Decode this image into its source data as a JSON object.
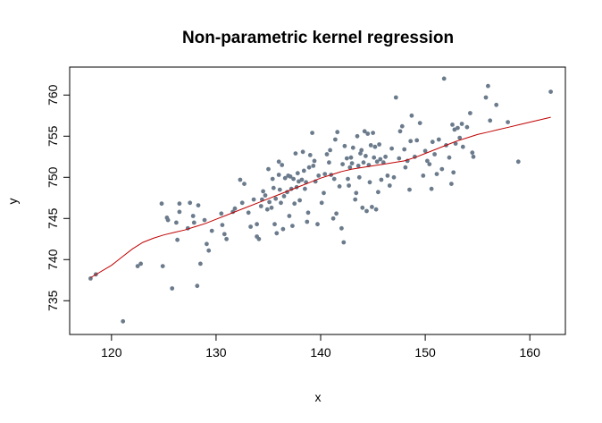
{
  "chart_data": {
    "type": "scatter",
    "title": "Non-parametric kernel regression",
    "xlabel": "x",
    "ylabel": "y",
    "xlim": [
      116,
      163.4
    ],
    "ylim": [
      730.9,
      763.4
    ],
    "xticks": [
      120,
      130,
      140,
      150,
      160
    ],
    "yticks": [
      735,
      740,
      745,
      750,
      755,
      760
    ],
    "grid": false,
    "legend": "none",
    "colors": {
      "points": "#6b7b8c",
      "fit": "#c00000",
      "frame": "#000000"
    },
    "series": [
      {
        "type": "scatter",
        "points": [
          [
            118,
            737.7
          ],
          [
            118.5,
            738.2
          ],
          [
            121.1,
            732.5
          ],
          [
            122.5,
            739.2
          ],
          [
            122.8,
            739.5
          ],
          [
            124.8,
            746.8
          ],
          [
            124.9,
            739.2
          ],
          [
            125.3,
            745.1
          ],
          [
            125.4,
            744.8
          ],
          [
            125.8,
            736.5
          ],
          [
            126.2,
            744.5
          ],
          [
            126.3,
            742.4
          ],
          [
            126.5,
            745.8
          ],
          [
            126.5,
            746.8
          ],
          [
            127.3,
            743.8
          ],
          [
            127.5,
            746.9
          ],
          [
            127.8,
            745.3
          ],
          [
            127.9,
            744.5
          ],
          [
            128.2,
            736.8
          ],
          [
            128.3,
            746.6
          ],
          [
            128.5,
            739.5
          ],
          [
            128.9,
            744.8
          ],
          [
            129.1,
            741.9
          ],
          [
            129.3,
            741.1
          ],
          [
            129.6,
            743.5
          ],
          [
            130.5,
            745.6
          ],
          [
            130.6,
            744.2
          ],
          [
            130.8,
            743.1
          ],
          [
            131.0,
            742.5
          ],
          [
            131.6,
            745.8
          ],
          [
            131.8,
            746.2
          ],
          [
            132.3,
            749.7
          ],
          [
            132.5,
            746.9
          ],
          [
            132.7,
            749.2
          ],
          [
            133.1,
            745.7
          ],
          [
            133.3,
            744.0
          ],
          [
            133.6,
            747.3
          ],
          [
            133.9,
            742.8
          ],
          [
            133.9,
            744.3
          ],
          [
            134.1,
            742.5
          ],
          [
            134.3,
            746.5
          ],
          [
            134.4,
            747.3
          ],
          [
            134.5,
            748.3
          ],
          [
            134.7,
            747.8
          ],
          [
            134.9,
            746.1
          ],
          [
            135.0,
            751.0
          ],
          [
            135.1,
            747.0
          ],
          [
            135.3,
            746.3
          ],
          [
            135.4,
            749.8
          ],
          [
            135.5,
            748.7
          ],
          [
            135.6,
            744.3
          ],
          [
            135.7,
            747.4
          ],
          [
            135.8,
            743.2
          ],
          [
            136.0,
            751.9
          ],
          [
            136.0,
            750.3
          ],
          [
            136.1,
            748.5
          ],
          [
            136.2,
            746.9
          ],
          [
            136.3,
            751.5
          ],
          [
            136.4,
            743.7
          ],
          [
            136.5,
            747.7
          ],
          [
            136.6,
            749.9
          ],
          [
            136.8,
            748.2
          ],
          [
            136.9,
            750.2
          ],
          [
            137.0,
            745.3
          ],
          [
            137.1,
            750.1
          ],
          [
            137.2,
            748.6
          ],
          [
            137.3,
            744.1
          ],
          [
            137.4,
            749.8
          ],
          [
            137.5,
            746.8
          ],
          [
            137.6,
            752.9
          ],
          [
            137.7,
            748.8
          ],
          [
            137.8,
            750.5
          ],
          [
            137.9,
            749.5
          ],
          [
            138.0,
            747.2
          ],
          [
            138.2,
            749.7
          ],
          [
            138.3,
            753.1
          ],
          [
            138.4,
            750.8
          ],
          [
            138.5,
            748.6
          ],
          [
            138.6,
            749.4
          ],
          [
            138.7,
            744.6
          ],
          [
            138.8,
            745.7
          ],
          [
            138.9,
            751.2
          ],
          [
            139.0,
            752.7
          ],
          [
            139.2,
            755.4
          ],
          [
            139.3,
            751.4
          ],
          [
            139.4,
            752.0
          ],
          [
            139.5,
            749.5
          ],
          [
            139.7,
            744.3
          ],
          [
            139.8,
            750.2
          ],
          [
            140.1,
            746.9
          ],
          [
            140.3,
            748.1
          ],
          [
            140.4,
            750.4
          ],
          [
            140.6,
            752.8
          ],
          [
            140.8,
            751.8
          ],
          [
            140.9,
            753.3
          ],
          [
            141.0,
            750.3
          ],
          [
            141.2,
            745.0
          ],
          [
            141.3,
            749.8
          ],
          [
            141.4,
            754.6
          ],
          [
            141.5,
            745.6
          ],
          [
            141.6,
            755.5
          ],
          [
            141.8,
            748.9
          ],
          [
            142.0,
            743.8
          ],
          [
            142.1,
            751.6
          ],
          [
            142.2,
            742.1
          ],
          [
            142.3,
            753.8
          ],
          [
            142.5,
            752.3
          ],
          [
            142.6,
            749.8
          ],
          [
            142.7,
            749.0
          ],
          [
            142.8,
            751.2
          ],
          [
            142.9,
            752.4
          ],
          [
            143.0,
            751.7
          ],
          [
            143.1,
            753.6
          ],
          [
            143.3,
            747.3
          ],
          [
            143.4,
            748.1
          ],
          [
            143.5,
            755.0
          ],
          [
            143.6,
            751.4
          ],
          [
            143.7,
            750.0
          ],
          [
            143.8,
            752.9
          ],
          [
            143.9,
            753.3
          ],
          [
            144.0,
            746.3
          ],
          [
            144.1,
            751.8
          ],
          [
            144.2,
            755.6
          ],
          [
            144.3,
            752.6
          ],
          [
            144.4,
            745.9
          ],
          [
            144.5,
            755.3
          ],
          [
            144.6,
            751.5
          ],
          [
            144.7,
            749.4
          ],
          [
            144.8,
            753.9
          ],
          [
            144.9,
            746.4
          ],
          [
            145.0,
            755.4
          ],
          [
            145.1,
            752.4
          ],
          [
            145.2,
            753.7
          ],
          [
            145.3,
            746.1
          ],
          [
            145.4,
            751.9
          ],
          [
            145.5,
            748.2
          ],
          [
            145.6,
            754.0
          ],
          [
            145.7,
            752.2
          ],
          [
            145.8,
            749.7
          ],
          [
            146.0,
            751.8
          ],
          [
            146.2,
            752.5
          ],
          [
            146.4,
            750.2
          ],
          [
            146.6,
            749.0
          ],
          [
            146.8,
            753.5
          ],
          [
            147.0,
            750.0
          ],
          [
            147.2,
            759.7
          ],
          [
            147.5,
            752.3
          ],
          [
            147.6,
            755.6
          ],
          [
            147.8,
            756.2
          ],
          [
            148.0,
            753.4
          ],
          [
            148.1,
            751.2
          ],
          [
            148.3,
            752.0
          ],
          [
            148.5,
            748.5
          ],
          [
            148.6,
            754.4
          ],
          [
            148.7,
            757.5
          ],
          [
            149.0,
            752.5
          ],
          [
            149.2,
            754.5
          ],
          [
            149.5,
            756.6
          ],
          [
            149.8,
            750.2
          ],
          [
            150.0,
            753.2
          ],
          [
            150.2,
            752.0
          ],
          [
            150.4,
            751.6
          ],
          [
            150.6,
            748.6
          ],
          [
            150.7,
            754.3
          ],
          [
            150.9,
            752.8
          ],
          [
            151.1,
            750.4
          ],
          [
            151.3,
            754.6
          ],
          [
            151.6,
            751.0
          ],
          [
            151.8,
            762.0
          ],
          [
            152.0,
            753.9
          ],
          [
            152.3,
            752.4
          ],
          [
            152.5,
            749.2
          ],
          [
            152.6,
            756.4
          ],
          [
            152.7,
            750.6
          ],
          [
            152.8,
            755.8
          ],
          [
            152.9,
            754.1
          ],
          [
            153.1,
            756.0
          ],
          [
            153.3,
            754.8
          ],
          [
            153.5,
            756.5
          ],
          [
            153.6,
            753.7
          ],
          [
            154.0,
            756.1
          ],
          [
            154.3,
            757.8
          ],
          [
            154.5,
            753.0
          ],
          [
            154.6,
            752.5
          ],
          [
            155.8,
            759.7
          ],
          [
            156.0,
            761.1
          ],
          [
            156.2,
            756.9
          ],
          [
            156.8,
            758.8
          ],
          [
            157.9,
            756.7
          ],
          [
            158.9,
            751.9
          ],
          [
            162.0,
            760.4
          ]
        ]
      },
      {
        "type": "line",
        "x": [
          118,
          120,
          121,
          122,
          123,
          124,
          125,
          126,
          127,
          128,
          129,
          130,
          131,
          132,
          133,
          134,
          135,
          136,
          137,
          138,
          139,
          140,
          141,
          142,
          143,
          144,
          145,
          146,
          147,
          148,
          149,
          150,
          151,
          152,
          153,
          154,
          155,
          156,
          157,
          158,
          159,
          160,
          161,
          162
        ],
        "y": [
          737.8,
          739.3,
          740.3,
          741.3,
          742.1,
          742.6,
          743.0,
          743.3,
          743.6,
          744.0,
          744.4,
          744.9,
          745.4,
          745.9,
          746.4,
          746.9,
          747.4,
          747.9,
          748.4,
          748.9,
          749.4,
          749.9,
          750.3,
          750.7,
          751.0,
          751.2,
          751.4,
          751.6,
          751.8,
          752.0,
          752.4,
          752.9,
          753.4,
          753.9,
          754.4,
          754.8,
          755.2,
          755.5,
          755.8,
          756.1,
          756.4,
          756.7,
          757.0,
          757.3
        ]
      }
    ]
  }
}
